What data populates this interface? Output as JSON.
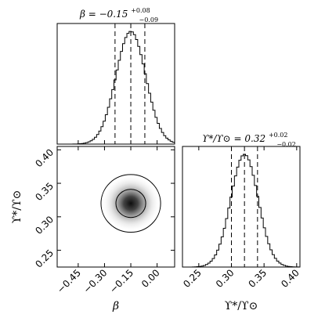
{
  "chart_data": {
    "type": "corner",
    "parameters": [
      {
        "key": "beta",
        "label": "β",
        "median": -0.15,
        "err_plus": 0.08,
        "err_minus": 0.09
      },
      {
        "key": "upsilon",
        "label": "ϒ*/ϒ⊙",
        "median": 0.32,
        "err_plus": 0.02,
        "err_minus": 0.02
      }
    ],
    "titles": {
      "beta": {
        "prefix": "β = −0.15",
        "sup": "+0.08",
        "sub": "−0.09"
      },
      "upsilon": {
        "prefix": "ϒ*/ϒ⊙ = 0.32",
        "sup": "+0.02",
        "sub": "−0.02"
      }
    },
    "axes": {
      "beta": {
        "range": [
          -0.57,
          0.1
        ],
        "ticks": [
          -0.45,
          -0.3,
          -0.15,
          0.0
        ],
        "tick_labels": [
          "−0.45",
          "−0.30",
          "−0.15",
          "0.00"
        ],
        "label": "β"
      },
      "upsilon": {
        "range": [
          0.225,
          0.405
        ],
        "ticks": [
          0.25,
          0.3,
          0.35,
          0.4
        ],
        "tick_labels": [
          "0.25",
          "0.30",
          "0.35",
          "0.40"
        ],
        "label": "ϒ*/ϒ⊙"
      }
    },
    "quantile_lines": {
      "beta": [
        -0.24,
        -0.15,
        -0.07
      ],
      "upsilon": [
        0.3,
        0.32,
        0.34
      ]
    },
    "joint_contours": [
      {
        "level": "inner",
        "beta_halfwidth": 0.085,
        "upsilon_halfwidth": 0.021
      },
      {
        "level": "outer",
        "beta_halfwidth": 0.17,
        "upsilon_halfwidth": 0.043
      }
    ],
    "hist_beta": {
      "bin_edges_range": [
        -0.53,
        0.21
      ],
      "bins": 60,
      "center": -0.15,
      "sigma": 0.085
    },
    "hist_upsilon": {
      "bin_edges_range": [
        0.24,
        0.41
      ],
      "bins": 50,
      "center": 0.32,
      "sigma": 0.021
    }
  }
}
